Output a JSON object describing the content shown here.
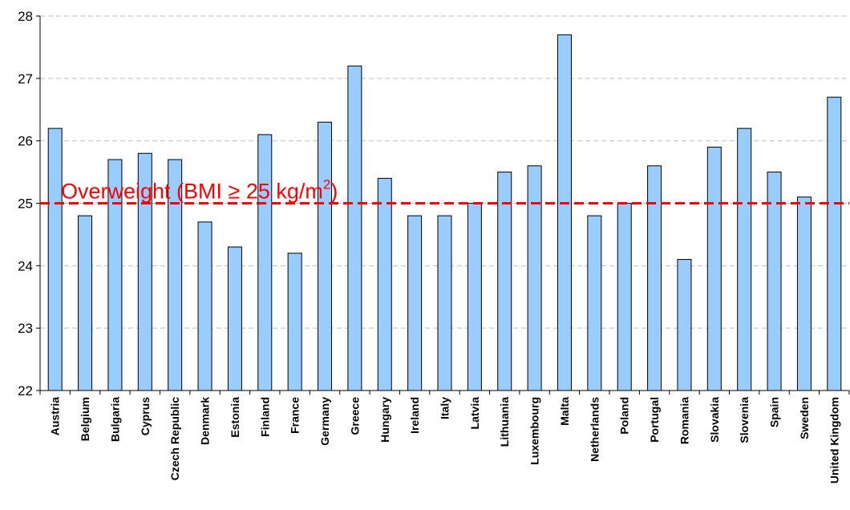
{
  "chart_data": {
    "type": "bar",
    "categories": [
      "Austria",
      "Belgium",
      "Bulgaria",
      "Cyprus",
      "Czech Republic",
      "Denmark",
      "Estonia",
      "Finland",
      "France",
      "Germany",
      "Greece",
      "Hungary",
      "Ireland",
      "Italy",
      "Latvia",
      "Lithuania",
      "Luxembourg",
      "Malta",
      "Netherlands",
      "Poland",
      "Portugal",
      "Romania",
      "Slovakia",
      "Slovenia",
      "Spain",
      "Sweden",
      "United Kingdom"
    ],
    "values": [
      26.2,
      24.8,
      25.7,
      25.8,
      25.7,
      24.7,
      24.3,
      26.1,
      24.2,
      26.3,
      27.2,
      25.4,
      24.8,
      24.8,
      25.0,
      25.5,
      25.6,
      27.7,
      24.8,
      25.0,
      25.6,
      24.1,
      25.9,
      26.2,
      25.5,
      25.1,
      26.7
    ],
    "title": "",
    "xlabel": "",
    "ylabel": "",
    "ylim": [
      22,
      28
    ],
    "yticks": [
      "22",
      "23",
      "24",
      "25",
      "26",
      "27",
      "28"
    ],
    "grid": "horizontal dashed",
    "bar_color": "#99ccff",
    "bar_edge_color": "#000000",
    "reference_line": {
      "value": 25,
      "color": "#ff0000",
      "style": "dashed",
      "label": "Overweight (BMI ≥ 25 kg/m",
      "label_superscript": "2",
      "label_suffix": ")"
    }
  }
}
